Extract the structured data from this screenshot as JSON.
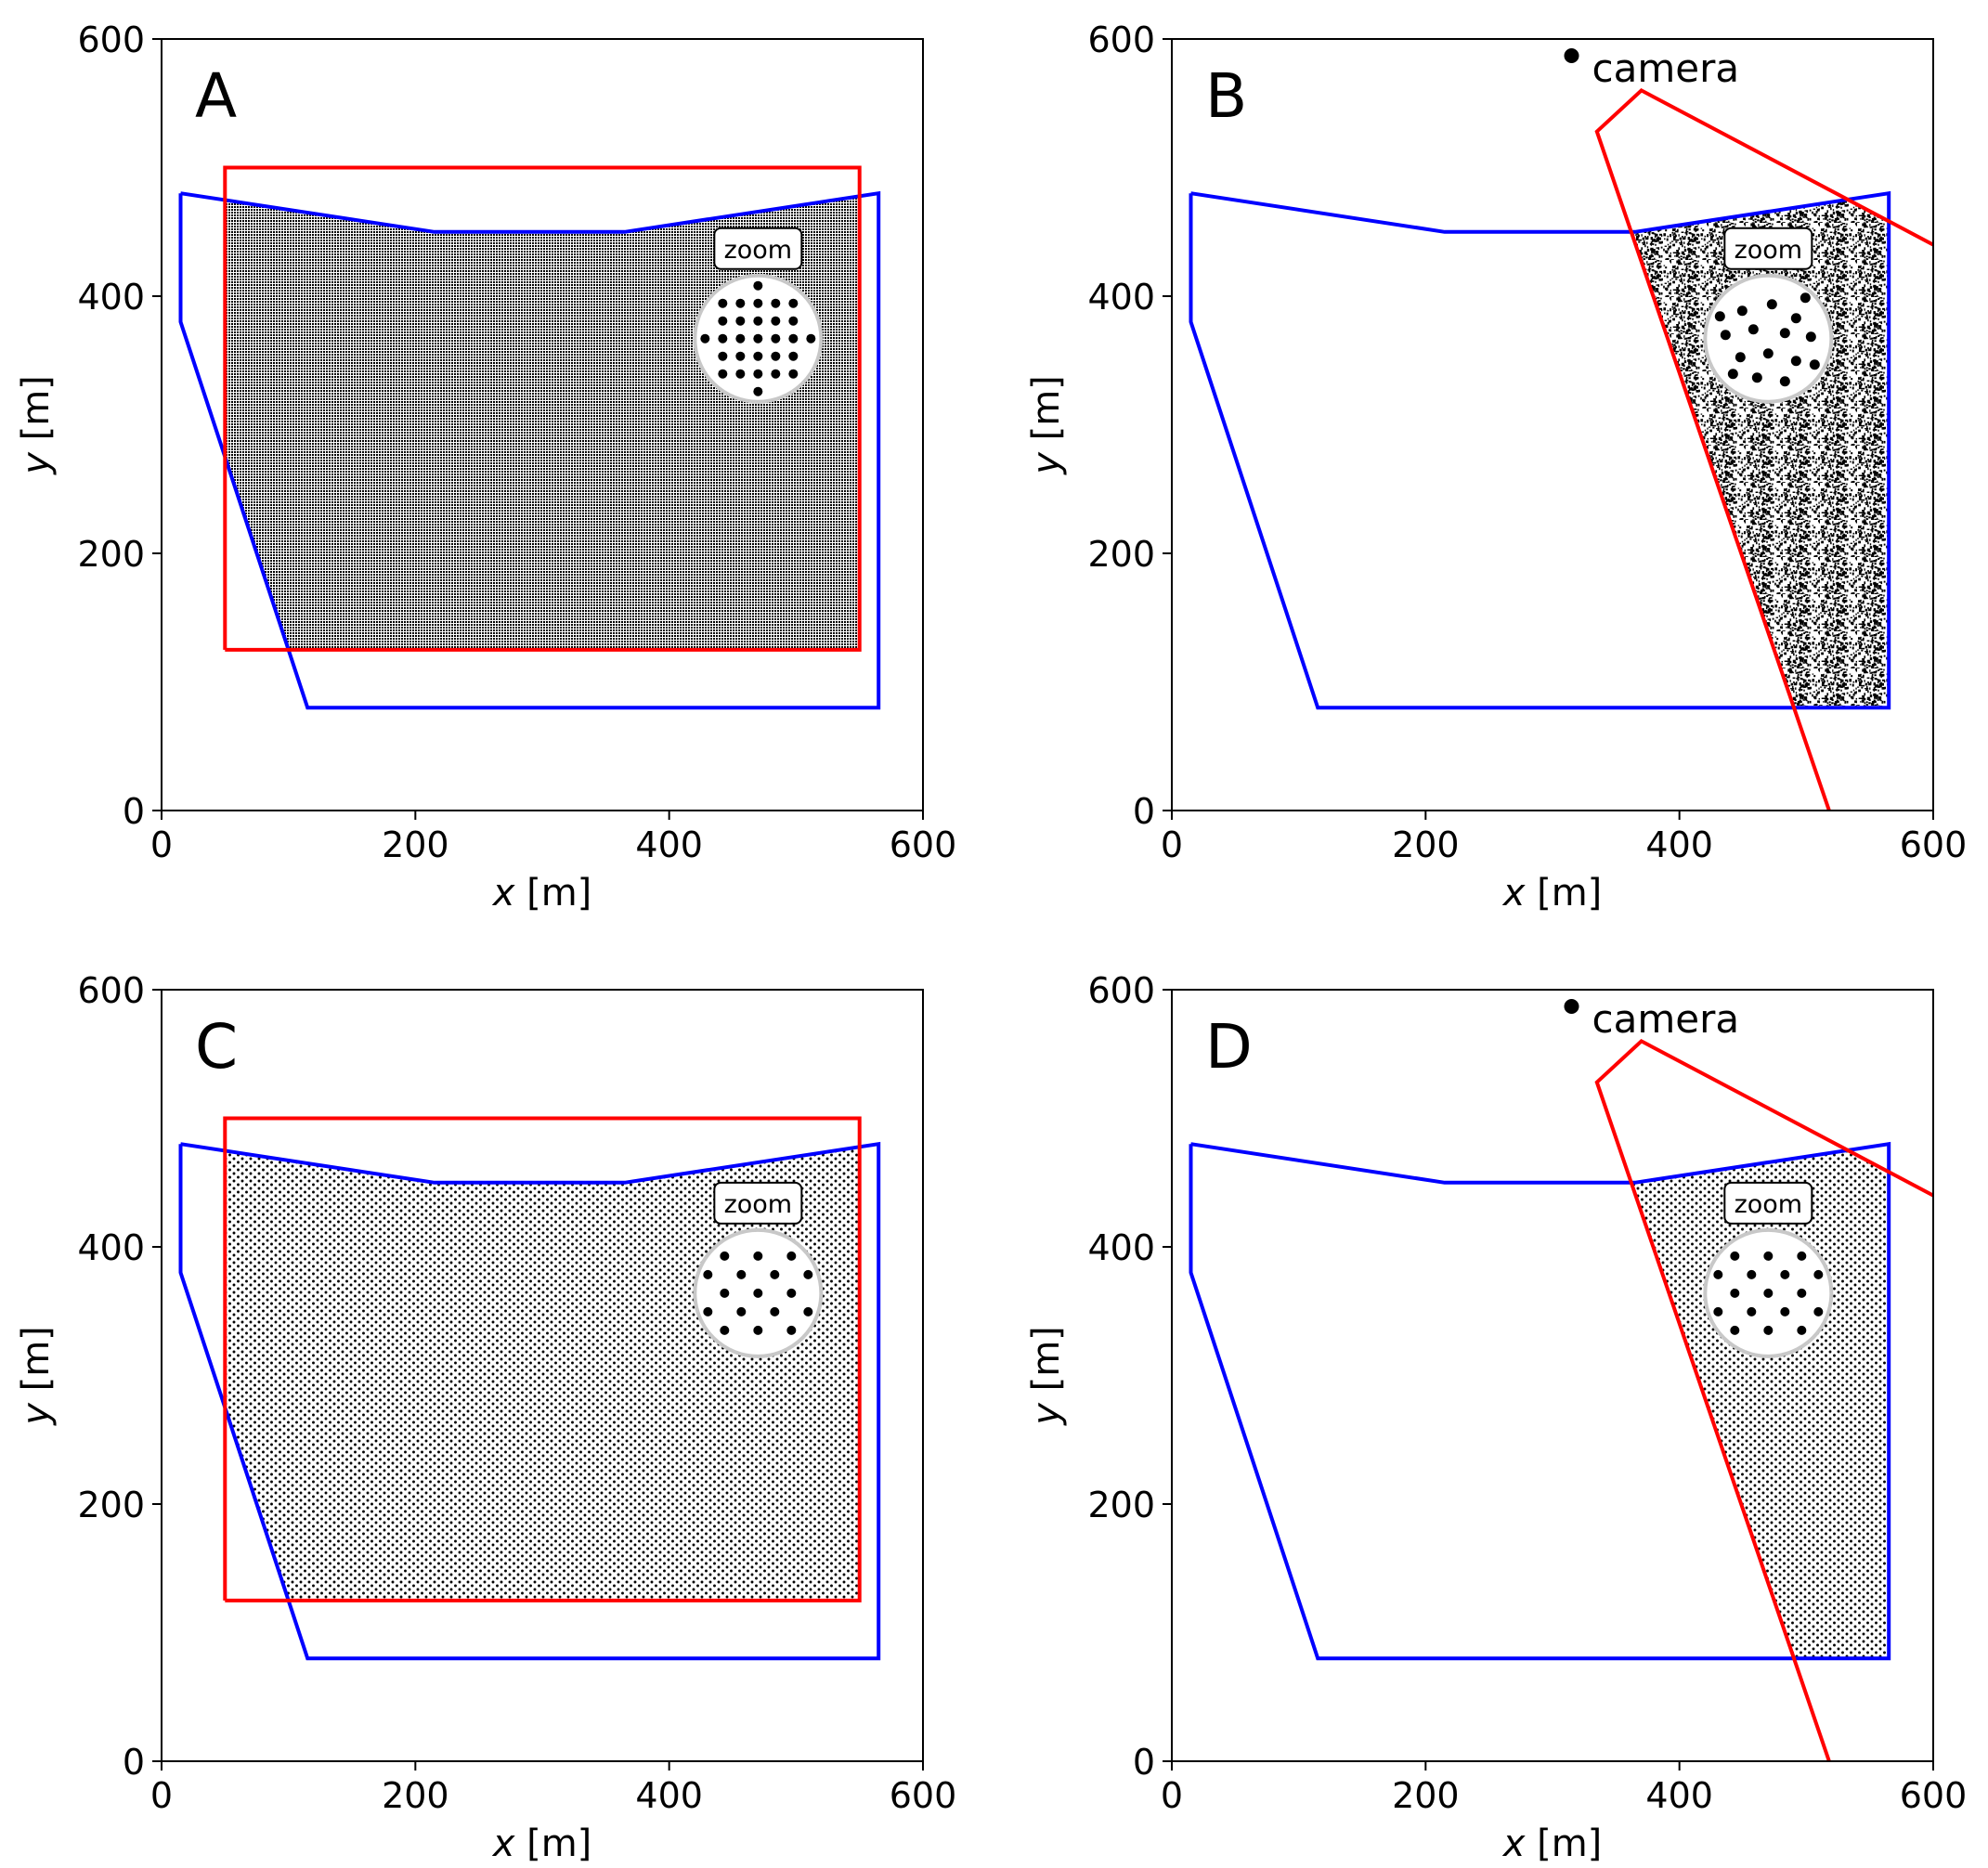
{
  "figure": {
    "layout": "2x2 grid of panels",
    "colors": {
      "domain_boundary": "#0000ff",
      "extent_outline": "#ff0000",
      "points": "#000000",
      "zoom_circle_edge": "#c8c8c8",
      "zoom_circle_fill": "#ffffff"
    }
  },
  "chart_data": [
    {
      "type": "scatter",
      "panel_label": "A",
      "xlabel_var": "x",
      "xlabel_unit": "[m]",
      "ylabel_var": "y",
      "ylabel_unit": "[m]",
      "xlim": [
        0,
        600
      ],
      "ylim": [
        0,
        600
      ],
      "xticks": [
        "0",
        "200",
        "400",
        "600"
      ],
      "yticks": [
        "0",
        "200",
        "400",
        "600"
      ],
      "grid": false,
      "zoom_label": "zoom",
      "camera": null,
      "point_pattern": "regular-grid",
      "point_density": "very dense",
      "blue_polygon": [
        [
          15,
          480
        ],
        [
          15,
          380
        ],
        [
          115,
          80
        ],
        [
          565,
          80
        ],
        [
          565,
          480
        ],
        [
          365,
          450
        ],
        [
          215,
          450
        ],
        [
          15,
          480
        ]
      ],
      "red_polygon": [
        [
          50,
          125
        ],
        [
          550,
          125
        ],
        [
          550,
          500
        ],
        [
          50,
          500
        ],
        [
          50,
          125
        ]
      ]
    },
    {
      "type": "scatter",
      "panel_label": "B",
      "xlabel_var": "x",
      "xlabel_unit": "[m]",
      "ylabel_var": "y",
      "ylabel_unit": "[m]",
      "xlim": [
        0,
        600
      ],
      "ylim": [
        0,
        600
      ],
      "xticks": [
        "0",
        "200",
        "400",
        "600"
      ],
      "yticks": [
        "0",
        "200",
        "400",
        "600"
      ],
      "grid": false,
      "zoom_label": "zoom",
      "camera": {
        "x": 315,
        "y": 587,
        "label": "camera"
      },
      "point_pattern": "irregular-dense",
      "point_density": "very dense",
      "blue_polygon": [
        [
          15,
          480
        ],
        [
          15,
          380
        ],
        [
          115,
          80
        ],
        [
          565,
          80
        ],
        [
          565,
          480
        ],
        [
          365,
          450
        ],
        [
          215,
          450
        ],
        [
          15,
          480
        ]
      ],
      "red_polygon": [
        [
          518,
          0
        ],
        [
          335,
          528
        ],
        [
          370,
          560
        ],
        [
          600,
          440
        ]
      ]
    },
    {
      "type": "scatter",
      "panel_label": "C",
      "xlabel_var": "x",
      "xlabel_unit": "[m]",
      "ylabel_var": "y",
      "ylabel_unit": "[m]",
      "xlim": [
        0,
        600
      ],
      "ylim": [
        0,
        600
      ],
      "xticks": [
        "0",
        "200",
        "400",
        "600"
      ],
      "yticks": [
        "0",
        "200",
        "400",
        "600"
      ],
      "grid": false,
      "zoom_label": "zoom",
      "camera": null,
      "point_pattern": "hexagonal",
      "point_density": "dense",
      "blue_polygon": [
        [
          15,
          480
        ],
        [
          15,
          380
        ],
        [
          115,
          80
        ],
        [
          565,
          80
        ],
        [
          565,
          480
        ],
        [
          365,
          450
        ],
        [
          215,
          450
        ],
        [
          15,
          480
        ]
      ],
      "red_polygon": [
        [
          50,
          125
        ],
        [
          550,
          125
        ],
        [
          550,
          500
        ],
        [
          50,
          500
        ],
        [
          50,
          125
        ]
      ]
    },
    {
      "type": "scatter",
      "panel_label": "D",
      "xlabel_var": "x",
      "xlabel_unit": "[m]",
      "ylabel_var": "y",
      "ylabel_unit": "[m]",
      "xlim": [
        0,
        600
      ],
      "ylim": [
        0,
        600
      ],
      "xticks": [
        "0",
        "200",
        "400",
        "600"
      ],
      "yticks": [
        "0",
        "200",
        "400",
        "600"
      ],
      "grid": false,
      "zoom_label": "zoom",
      "camera": {
        "x": 315,
        "y": 587,
        "label": "camera"
      },
      "point_pattern": "hexagonal",
      "point_density": "dense",
      "blue_polygon": [
        [
          15,
          480
        ],
        [
          15,
          380
        ],
        [
          115,
          80
        ],
        [
          565,
          80
        ],
        [
          565,
          480
        ],
        [
          365,
          450
        ],
        [
          215,
          450
        ],
        [
          15,
          480
        ]
      ],
      "red_polygon": [
        [
          518,
          0
        ],
        [
          335,
          528
        ],
        [
          370,
          560
        ],
        [
          600,
          440
        ]
      ]
    }
  ]
}
